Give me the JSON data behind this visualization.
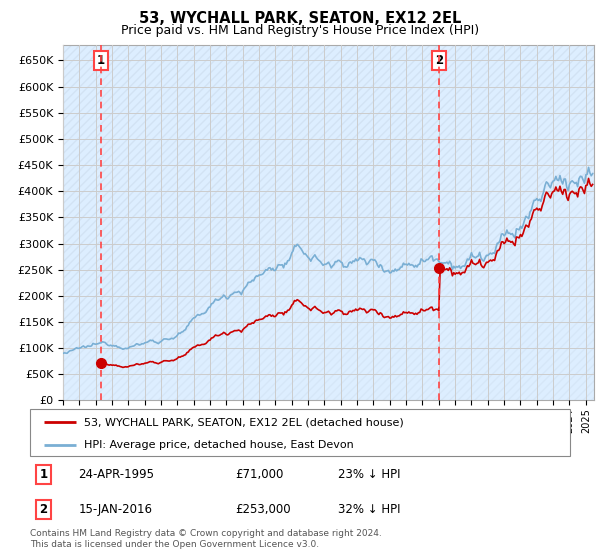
{
  "title": "53, WYCHALL PARK, SEATON, EX12 2EL",
  "subtitle": "Price paid vs. HM Land Registry's House Price Index (HPI)",
  "ylabel_ticks": [
    "£0",
    "£50K",
    "£100K",
    "£150K",
    "£200K",
    "£250K",
    "£300K",
    "£350K",
    "£400K",
    "£450K",
    "£500K",
    "£550K",
    "£600K",
    "£650K"
  ],
  "ylim": [
    0,
    680000
  ],
  "yticks": [
    0,
    50000,
    100000,
    150000,
    200000,
    250000,
    300000,
    350000,
    400000,
    450000,
    500000,
    550000,
    600000,
    650000
  ],
  "xmin": 1993.0,
  "xmax": 2025.5,
  "purchase1_date": 1995.31,
  "purchase1_price": 71000,
  "purchase2_date": 2016.04,
  "purchase2_price": 253000,
  "hpi_color": "#7aafd4",
  "hpi_fill_color": "#ddeeff",
  "price_color": "#cc0000",
  "vline_color": "#ff4444",
  "background_color": "#ffffff",
  "grid_color": "#cccccc",
  "legend_label1": "53, WYCHALL PARK, SEATON, EX12 2EL (detached house)",
  "legend_label2": "HPI: Average price, detached house, East Devon",
  "table_row1": [
    "1",
    "24-APR-1995",
    "£71,000",
    "23% ↓ HPI"
  ],
  "table_row2": [
    "2",
    "15-JAN-2016",
    "£253,000",
    "32% ↓ HPI"
  ],
  "footer": "Contains HM Land Registry data © Crown copyright and database right 2024.\nThis data is licensed under the Open Government Licence v3.0.",
  "title_fontsize": 10.5,
  "subtitle_fontsize": 9
}
